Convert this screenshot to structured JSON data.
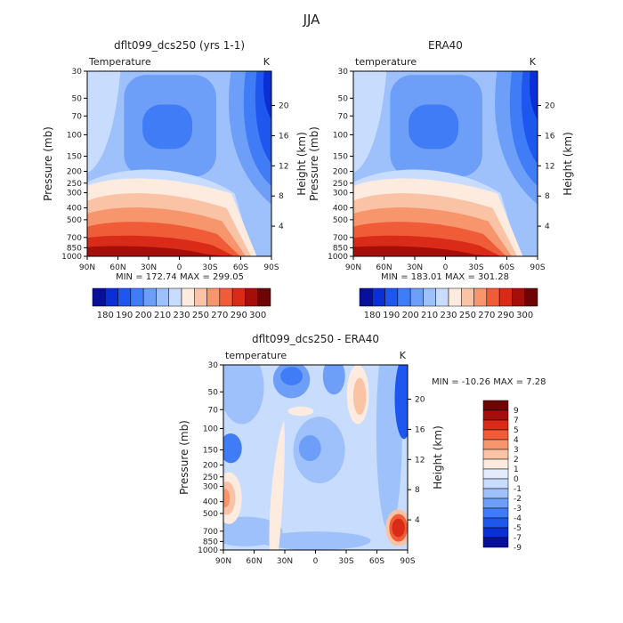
{
  "page_title": "JJA",
  "chart_data": [
    {
      "type": "heatmap",
      "title": "dflt099_dcs250 (yrs 1-1)",
      "subtitle_left": "Temperature",
      "subtitle_right": "K",
      "ylabel_left": "Pressure (mb)",
      "ylabel_right": "Height (km)",
      "xticks": [
        "90N",
        "60N",
        "30N",
        "0",
        "30S",
        "60S",
        "90S"
      ],
      "pressure_ticks": [
        "30",
        "50",
        "70",
        "100",
        "150",
        "200",
        "250",
        "300",
        "400",
        "500",
        "700",
        "850",
        "1000"
      ],
      "height_ticks": [
        "4",
        "8",
        "12",
        "16",
        "20"
      ],
      "min_max_label": "MIN = 172.74   MAX = 299.05",
      "colorbar_labels": [
        "180",
        "190",
        "200",
        "210",
        "230",
        "250",
        "270",
        "290",
        "300"
      ]
    },
    {
      "type": "heatmap",
      "title": "ERA40",
      "subtitle_left": "temperature",
      "subtitle_right": "K",
      "ylabel_left": "Pressure (mb)",
      "ylabel_right": "Height (km)",
      "xticks": [
        "90N",
        "60N",
        "30N",
        "0",
        "30S",
        "60S",
        "90S"
      ],
      "pressure_ticks": [
        "30",
        "50",
        "70",
        "100",
        "150",
        "200",
        "250",
        "300",
        "400",
        "500",
        "700",
        "850",
        "1000"
      ],
      "height_ticks": [
        "4",
        "8",
        "12",
        "16",
        "20"
      ],
      "min_max_label": "MIN = 183.01   MAX = 301.28",
      "colorbar_labels": [
        "180",
        "190",
        "200",
        "210",
        "230",
        "250",
        "270",
        "290",
        "300"
      ]
    },
    {
      "type": "heatmap",
      "title": "dflt099_dcs250 - ERA40",
      "subtitle_left": "temperature",
      "subtitle_right": "K",
      "ylabel_left": "Pressure (mb)",
      "ylabel_right": "Height (km)",
      "xticks": [
        "90N",
        "60N",
        "30N",
        "0",
        "30S",
        "60S",
        "90S"
      ],
      "pressure_ticks": [
        "30",
        "50",
        "70",
        "100",
        "150",
        "200",
        "250",
        "300",
        "400",
        "500",
        "700",
        "850",
        "1000"
      ],
      "height_ticks": [
        "4",
        "8",
        "12",
        "16",
        "20"
      ],
      "min_max_label": "MIN = -10.26  MAX =   7.28",
      "colorbar_labels": [
        "9",
        "7",
        "5",
        "4",
        "3",
        "2",
        "1",
        "0",
        "-1",
        "-2",
        "-3",
        "-4",
        "-5",
        "-7",
        "-9"
      ]
    }
  ],
  "colors": {
    "abs_scale": [
      "#08109a",
      "#0b2fd6",
      "#1d57ee",
      "#3f7cf5",
      "#6d9ef8",
      "#9ec0fb",
      "#c8dcfd",
      "#fdebe0",
      "#fbc3a5",
      "#f7956d",
      "#ef5c37",
      "#d92b17",
      "#a40f0b",
      "#6e0505"
    ],
    "diff_scale": [
      "#08109a",
      "#0b2fd6",
      "#1d57ee",
      "#3f7cf5",
      "#6d9ef8",
      "#9ec0fb",
      "#c8dcfd",
      "#e2ecfd",
      "#fdebe0",
      "#fbc3a5",
      "#f7956d",
      "#ef5c37",
      "#d92b17",
      "#a40f0b",
      "#6e0505"
    ]
  }
}
